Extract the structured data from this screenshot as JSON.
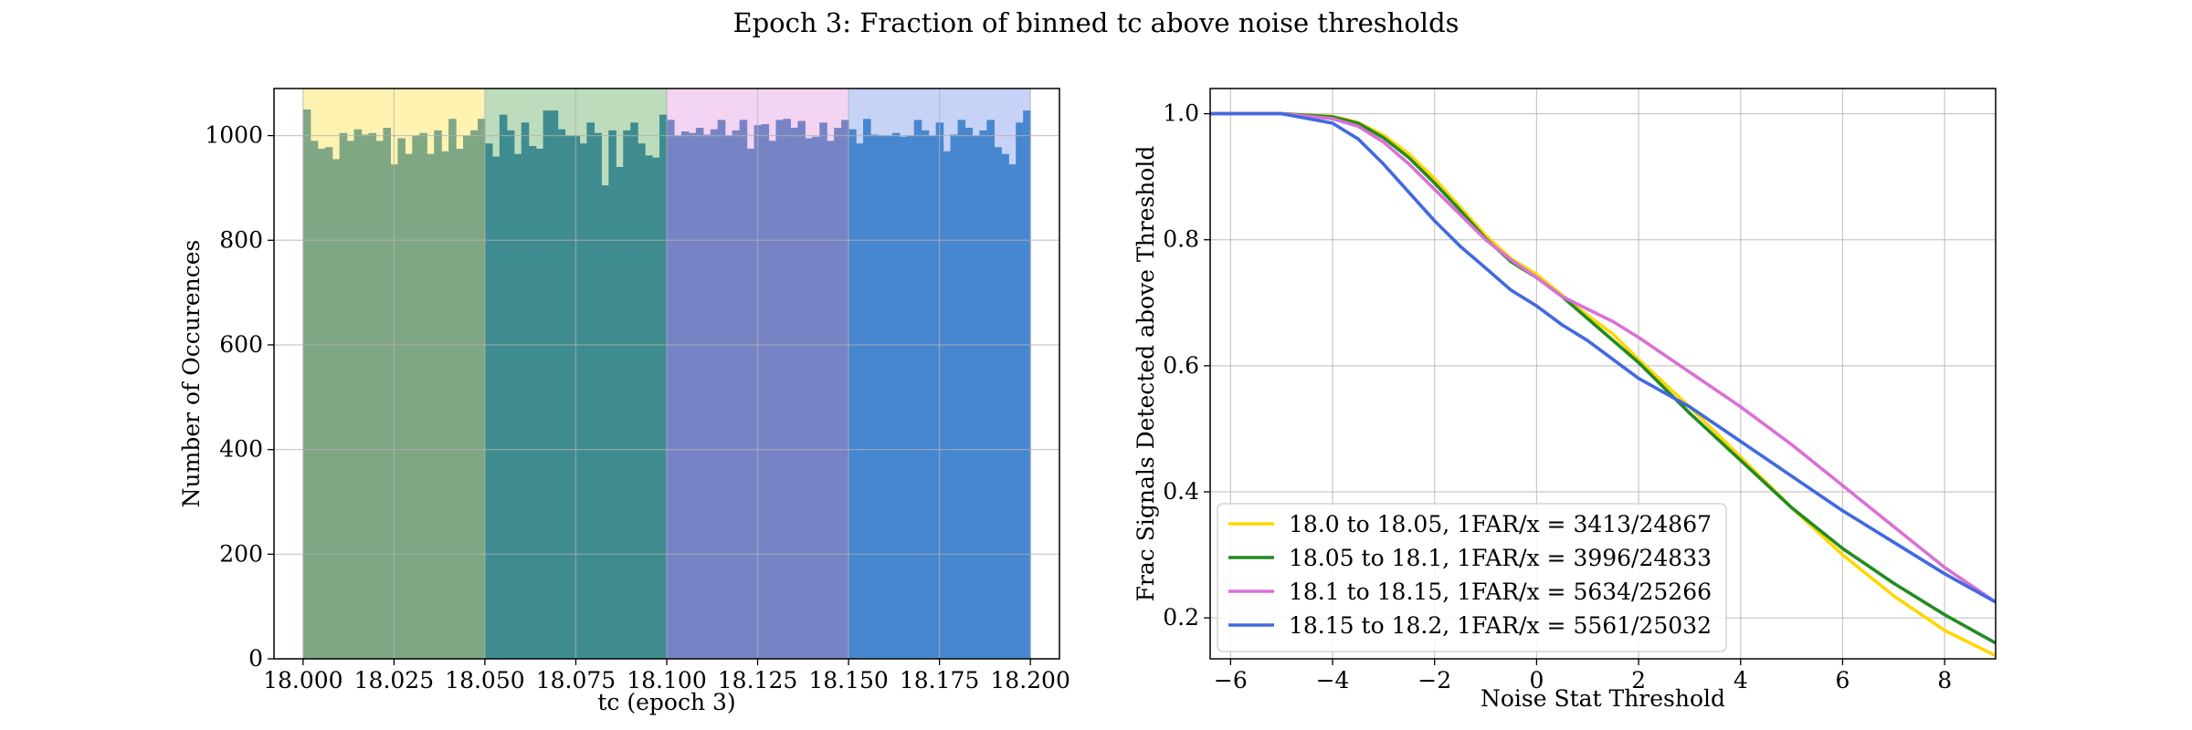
{
  "figure": {
    "title": "Epoch 3: Fraction of binned tc above noise thresholds"
  },
  "chart_data": [
    {
      "type": "histogram",
      "xlabel": "tc (epoch 3)",
      "ylabel": "Number of Occurences",
      "xlim": [
        17.992,
        18.208
      ],
      "ylim": [
        0,
        1090
      ],
      "xticks": [
        "18.000",
        "18.025",
        "18.050",
        "18.075",
        "18.100",
        "18.125",
        "18.150",
        "18.175",
        "18.200"
      ],
      "yticks": [
        "0",
        "200",
        "400",
        "600",
        "800",
        "1000"
      ],
      "grid": true,
      "bin_start": 18.0,
      "bin_width": 0.002,
      "counts": [
        1050,
        990,
        975,
        978,
        955,
        1005,
        990,
        1012,
        1002,
        1005,
        990,
        1015,
        945,
        995,
        965,
        1000,
        1005,
        965,
        1010,
        970,
        1032,
        975,
        1000,
        1010,
        1032,
        985,
        960,
        1040,
        1010,
        965,
        1025,
        980,
        975,
        1048,
        1048,
        1012,
        1000,
        1000,
        985,
        1025,
        1005,
        905,
        1010,
        940,
        1010,
        1025,
        985,
        962,
        958,
        1040,
        1030,
        1000,
        1008,
        1005,
        1015,
        1002,
        1012,
        1030,
        1000,
        1010,
        1030,
        975,
        1020,
        1022,
        990,
        1030,
        1032,
        1015,
        1028,
        995,
        998,
        1025,
        990,
        1015,
        1030,
        1012,
        985,
        1032,
        1002,
        1000,
        1000,
        1005,
        998,
        1000,
        1030,
        1010,
        1000,
        1025,
        970,
        1002,
        1030,
        1015,
        1000,
        1010,
        1030,
        978,
        965,
        945,
        1025,
        1048
      ],
      "bands": [
        {
          "from": 18.0,
          "to": 18.05,
          "color": "#ffd700"
        },
        {
          "from": 18.05,
          "to": 18.1,
          "color": "#228b22"
        },
        {
          "from": 18.1,
          "to": 18.15,
          "color": "#da70d6"
        },
        {
          "from": 18.15,
          "to": 18.2,
          "color": "#4169e1"
        }
      ],
      "hist_colors": [
        "#80a784",
        "#3e8c8f",
        "#7684c6",
        "#4787cf"
      ]
    },
    {
      "type": "line",
      "xlabel": "Noise Stat Threshold",
      "ylabel": "Frac Signals Detected above Threshold",
      "xlim": [
        -6.4,
        9
      ],
      "ylim": [
        0.135,
        1.04
      ],
      "xticks": [
        "−6",
        "−4",
        "−2",
        "0",
        "2",
        "4",
        "6",
        "8"
      ],
      "yticks": [
        "0.2",
        "0.4",
        "0.6",
        "0.8",
        "1.0"
      ],
      "grid": true,
      "legend_position": "lower-left",
      "series": [
        {
          "name": "18.0 to 18.05, 1FAR/x = 3413/24867",
          "color": "#ffd700",
          "x": [
            -6.4,
            -5,
            -4,
            -3.5,
            -3,
            -2.5,
            -2,
            -1.5,
            -1,
            -0.5,
            0,
            0.5,
            1,
            1.5,
            2,
            3,
            4,
            5,
            6,
            7,
            8,
            9
          ],
          "y": [
            1.0,
            1.0,
            0.996,
            0.986,
            0.966,
            0.936,
            0.897,
            0.852,
            0.807,
            0.77,
            0.745,
            0.712,
            0.68,
            0.65,
            0.61,
            0.535,
            0.455,
            0.375,
            0.3,
            0.235,
            0.18,
            0.14
          ]
        },
        {
          "name": "18.05 to 18.1, 1FAR/x = 3996/24833",
          "color": "#228b22",
          "x": [
            -6.4,
            -5,
            -4,
            -3.5,
            -3,
            -2.5,
            -2,
            -1.5,
            -1,
            -0.5,
            0,
            0.5,
            1,
            1.5,
            2,
            3,
            4,
            5,
            6,
            7,
            8,
            9
          ],
          "y": [
            1.0,
            1.0,
            0.995,
            0.985,
            0.962,
            0.93,
            0.89,
            0.847,
            0.802,
            0.765,
            0.74,
            0.71,
            0.675,
            0.64,
            0.605,
            0.525,
            0.45,
            0.375,
            0.31,
            0.255,
            0.205,
            0.16
          ]
        },
        {
          "name": "18.1 to 18.15, 1FAR/x = 5634/25266",
          "color": "#da70d6",
          "x": [
            -6.4,
            -5,
            -4,
            -3.5,
            -3,
            -2.5,
            -2,
            -1.5,
            -1,
            -0.5,
            0,
            0.5,
            1,
            1.5,
            2,
            3,
            4,
            5,
            6,
            7,
            8,
            9
          ],
          "y": [
            1.0,
            1.0,
            0.992,
            0.98,
            0.955,
            0.92,
            0.88,
            0.84,
            0.8,
            0.768,
            0.74,
            0.71,
            0.69,
            0.67,
            0.645,
            0.59,
            0.535,
            0.475,
            0.41,
            0.345,
            0.28,
            0.225
          ]
        },
        {
          "name": "18.15 to 18.2, 1FAR/x = 5561/25032",
          "color": "#4169e1",
          "x": [
            -6.4,
            -5,
            -4,
            -3.5,
            -3,
            -2.5,
            -2,
            -1.5,
            -1,
            -0.5,
            0,
            0.5,
            1,
            1.5,
            2,
            3,
            4,
            5,
            6,
            7,
            8,
            9
          ],
          "y": [
            1.0,
            1.0,
            0.985,
            0.96,
            0.92,
            0.875,
            0.83,
            0.79,
            0.755,
            0.72,
            0.695,
            0.665,
            0.64,
            0.61,
            0.58,
            0.535,
            0.48,
            0.425,
            0.37,
            0.32,
            0.27,
            0.225
          ]
        }
      ]
    }
  ]
}
